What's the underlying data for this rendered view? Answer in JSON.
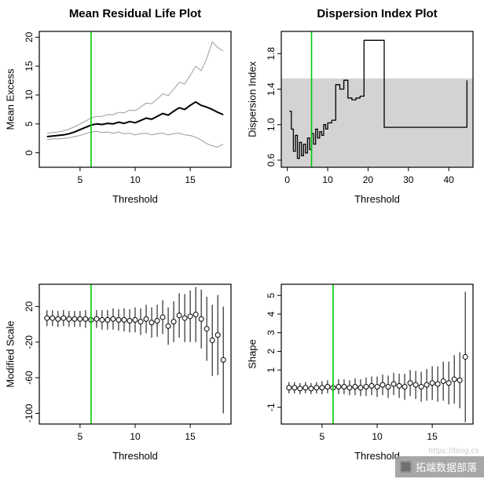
{
  "colors": {
    "threshold_line": "#00CC00",
    "ci_band": "#D3D3D3",
    "ci_line": "#9A9A9A",
    "series": "#000000",
    "background": "#FFFFFF"
  },
  "watermark": {
    "brand": "拓端数据部落",
    "url_text": "https://blog.cs"
  },
  "chart_data": [
    {
      "id": "mean-residual-life",
      "type": "line",
      "title": "Mean Residual Life Plot",
      "xlabel": "Threshold",
      "ylabel": "Mean Excess",
      "xlim": [
        1.3,
        18.7
      ],
      "ylim": [
        -2.5,
        21
      ],
      "xticks": [
        5,
        10,
        15
      ],
      "yticks": [
        0,
        5,
        10,
        15,
        20
      ],
      "threshold_vline": 6,
      "legend": "none",
      "grid": false,
      "x": [
        2,
        2.5,
        3,
        3.5,
        4,
        4.5,
        5,
        5.5,
        6,
        6.5,
        7,
        7.5,
        8,
        8.5,
        9,
        9.5,
        10,
        10.5,
        11,
        11.5,
        12,
        12.5,
        13,
        13.5,
        14,
        14.5,
        15,
        15.5,
        16,
        16.5,
        17,
        17.5,
        18
      ],
      "series": [
        {
          "name": "upper-ci",
          "kind": "line",
          "color": "#9A9A9A",
          "width": 1,
          "y": [
            3.4,
            3.5,
            3.6,
            3.8,
            4.1,
            4.5,
            5.0,
            5.5,
            6.0,
            6.3,
            6.3,
            6.6,
            6.6,
            7.0,
            6.9,
            7.4,
            7.3,
            7.9,
            8.6,
            8.5,
            9.3,
            10.2,
            9.9,
            11.0,
            12.2,
            11.9,
            13.4,
            15.0,
            14.2,
            16.3,
            19.2,
            18.2,
            17.6
          ]
        },
        {
          "name": "lower-ci",
          "kind": "line",
          "color": "#9A9A9A",
          "width": 1,
          "y": [
            2.3,
            2.4,
            2.4,
            2.5,
            2.6,
            2.8,
            3.0,
            3.3,
            3.6,
            3.7,
            3.5,
            3.6,
            3.4,
            3.6,
            3.3,
            3.4,
            3.1,
            3.3,
            3.4,
            3.1,
            3.3,
            3.4,
            3.1,
            3.3,
            3.4,
            3.1,
            3.0,
            2.7,
            2.2,
            1.6,
            1.2,
            1.0,
            1.5
          ]
        },
        {
          "name": "mean-excess",
          "kind": "line",
          "color": "#000000",
          "width": 2,
          "y": [
            2.8,
            2.9,
            3.0,
            3.1,
            3.3,
            3.6,
            4.0,
            4.4,
            4.8,
            5.0,
            4.9,
            5.1,
            5.0,
            5.3,
            5.1,
            5.4,
            5.2,
            5.6,
            6.0,
            5.8,
            6.3,
            6.8,
            6.5,
            7.2,
            7.8,
            7.5,
            8.2,
            8.8,
            8.2,
            7.9,
            7.5,
            7.0,
            6.6
          ]
        }
      ]
    },
    {
      "id": "dispersion-index",
      "type": "line",
      "title": "Dispersion Index Plot",
      "xlabel": "Threshold",
      "ylabel": "Dispersion Index",
      "xlim": [
        -1.5,
        46
      ],
      "ylim": [
        0.52,
        2.05
      ],
      "xticks": [
        0,
        10,
        20,
        30,
        40
      ],
      "yticks": [
        0.6,
        1.0,
        1.4,
        1.8
      ],
      "ytick_labels": [
        "0.6",
        "1.0",
        "1.4",
        "1.8"
      ],
      "band": [
        0.52,
        1.52
      ],
      "threshold_vline": 6,
      "legend": "none",
      "grid": false,
      "series": [
        {
          "name": "dispersion-index",
          "kind": "step",
          "color": "#000000",
          "width": 1.3,
          "x": [
            0.5,
            1,
            1.5,
            2,
            2.5,
            3,
            3.5,
            4,
            4.5,
            5,
            5.5,
            6,
            6.5,
            7,
            7.5,
            8,
            8.5,
            9,
            9.5,
            10,
            11,
            12,
            13,
            14,
            15,
            16,
            17,
            18,
            19,
            24,
            43,
            44.5
          ],
          "y": [
            1.15,
            0.95,
            0.7,
            0.88,
            0.62,
            0.8,
            0.65,
            0.78,
            0.68,
            0.85,
            0.72,
            0.9,
            0.78,
            0.95,
            0.85,
            0.92,
            0.88,
            1.0,
            0.95,
            1.02,
            1.05,
            1.45,
            1.4,
            1.5,
            1.3,
            1.28,
            1.3,
            1.32,
            1.95,
            0.97,
            0.97,
            1.5
          ]
        }
      ]
    },
    {
      "id": "modified-scale",
      "type": "scatter",
      "title": "",
      "xlabel": "Threshold",
      "ylabel": "Modified Scale",
      "xlim": [
        1.3,
        18.7
      ],
      "ylim": [
        -112,
        45
      ],
      "xticks": [
        5,
        10,
        15
      ],
      "yticks": [
        -100,
        -60,
        -20,
        20
      ],
      "threshold_vline": 6,
      "legend": "none",
      "grid": false,
      "x": [
        2,
        2.5,
        3,
        3.5,
        4,
        4.5,
        5,
        5.5,
        6,
        6.5,
        7,
        7.5,
        8,
        8.5,
        9,
        9.5,
        10,
        10.5,
        11,
        11.5,
        12,
        12.5,
        13,
        13.5,
        14,
        14.5,
        15,
        15.5,
        16,
        16.5,
        17,
        17.5,
        18
      ],
      "series": [
        {
          "name": "modified-scale-estimates",
          "kind": "points",
          "color": "#000000",
          "y": [
            7,
            7,
            6,
            7,
            6,
            6,
            6,
            6,
            5,
            6,
            5,
            5,
            6,
            5,
            5,
            4,
            5,
            3,
            6,
            2,
            4,
            8,
            -2,
            3,
            10,
            7,
            9,
            11,
            6,
            -5,
            -18,
            -12,
            -40
          ],
          "err": [
            9,
            9,
            9,
            9,
            9,
            9,
            9,
            10,
            10,
            10,
            11,
            11,
            12,
            12,
            13,
            13,
            14,
            15,
            16,
            17,
            18,
            19,
            21,
            23,
            25,
            27,
            29,
            31,
            33,
            36,
            40,
            45,
            60
          ]
        }
      ]
    },
    {
      "id": "shape",
      "type": "scatter",
      "title": "",
      "xlabel": "Threshold",
      "ylabel": "Shape",
      "xlim": [
        1.3,
        18.7
      ],
      "ylim": [
        -1.9,
        5.6
      ],
      "xticks": [
        5,
        10,
        15
      ],
      "yticks": [
        -1,
        1,
        2,
        3,
        4,
        5
      ],
      "ytick_labels": [
        "-1",
        "1",
        "2",
        "3",
        "4",
        "5"
      ],
      "threshold_vline": 6,
      "legend": "none",
      "grid": false,
      "x": [
        2,
        2.5,
        3,
        3.5,
        4,
        4.5,
        5,
        5.5,
        6,
        6.5,
        7,
        7.5,
        8,
        8.5,
        9,
        9.5,
        10,
        10.5,
        11,
        11.5,
        12,
        12.5,
        13,
        13.5,
        14,
        14.5,
        15,
        15.5,
        16,
        16.5,
        17,
        17.5,
        18
      ],
      "series": [
        {
          "name": "shape-estimates",
          "kind": "points",
          "color": "#000000",
          "y": [
            0.05,
            0.05,
            0.0,
            0.05,
            0.0,
            0.05,
            0.05,
            0.1,
            0.05,
            0.1,
            0.1,
            0.05,
            0.1,
            0.05,
            0.1,
            0.15,
            0.1,
            0.2,
            0.1,
            0.25,
            0.15,
            0.1,
            0.3,
            0.2,
            0.1,
            0.2,
            0.3,
            0.25,
            0.4,
            0.3,
            0.5,
            0.45,
            1.7
          ],
          "err": [
            0.3,
            0.3,
            0.3,
            0.3,
            0.3,
            0.3,
            0.35,
            0.35,
            0.35,
            0.4,
            0.4,
            0.4,
            0.45,
            0.45,
            0.5,
            0.5,
            0.55,
            0.55,
            0.6,
            0.6,
            0.65,
            0.7,
            0.7,
            0.75,
            0.8,
            0.85,
            0.9,
            0.95,
            1.05,
            1.15,
            1.3,
            1.5,
            3.5
          ]
        }
      ]
    }
  ]
}
